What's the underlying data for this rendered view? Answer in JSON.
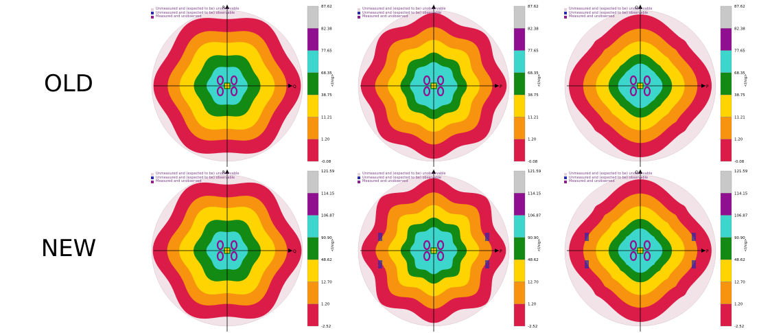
{
  "row_labels": [
    "OLD",
    "NEW"
  ],
  "legend_entries": [
    {
      "label": "Unmeasured and (expected to be) unobservable",
      "color": "#e8d0d8"
    },
    {
      "label": "Unmeasured and (expected to be) observable",
      "color": "#2a2aa8"
    },
    {
      "label": "Measured and unobserved",
      "color": "#8e1d8e"
    }
  ],
  "scale_unit": "<I/sig>",
  "band_colors": [
    "#dc1c48",
    "#f7930e",
    "#ffd400",
    "#138a13",
    "#3cd6cc",
    "#900f90",
    "#c8c8c8"
  ],
  "chart_data": [
    {
      "type": "heatmap",
      "row": "OLD",
      "axes": {
        "vertical": "R",
        "horizontal": "Q"
      },
      "colorbar_ticks": [
        "87.62",
        "82.38",
        "77.65",
        "68.35",
        "38.75",
        "11.21",
        "1.20",
        "-0.08"
      ]
    },
    {
      "type": "heatmap",
      "row": "OLD",
      "axes": {
        "vertical": "",
        "horizontal": "P"
      },
      "colorbar_ticks": [
        "87.62",
        "82.38",
        "77.65",
        "68.35",
        "38.75",
        "11.21",
        "1.20",
        "-0.08"
      ]
    },
    {
      "type": "heatmap",
      "row": "OLD",
      "axes": {
        "vertical": "Q",
        "horizontal": "P"
      },
      "colorbar_ticks": [
        "87.62",
        "82.38",
        "77.65",
        "68.35",
        "38.75",
        "11.21",
        "1.20",
        "-0.08"
      ]
    },
    {
      "type": "heatmap",
      "row": "NEW",
      "axes": {
        "vertical": "R",
        "horizontal": "Q"
      },
      "colorbar_ticks": [
        "121.59",
        "114.15",
        "106.87",
        "90.90",
        "48.62",
        "12.70",
        "1.20",
        "-2.52"
      ]
    },
    {
      "type": "heatmap",
      "row": "NEW",
      "axes": {
        "vertical": "",
        "horizontal": "P"
      },
      "colorbar_ticks": [
        "121.59",
        "114.15",
        "106.87",
        "90.90",
        "48.62",
        "12.70",
        "1.20",
        "-2.52"
      ]
    },
    {
      "type": "heatmap",
      "row": "NEW",
      "axes": {
        "vertical": "Q",
        "horizontal": "P"
      },
      "colorbar_ticks": [
        "121.59",
        "114.15",
        "106.87",
        "90.90",
        "48.62",
        "12.70",
        "1.20",
        "-2.52"
      ]
    }
  ]
}
